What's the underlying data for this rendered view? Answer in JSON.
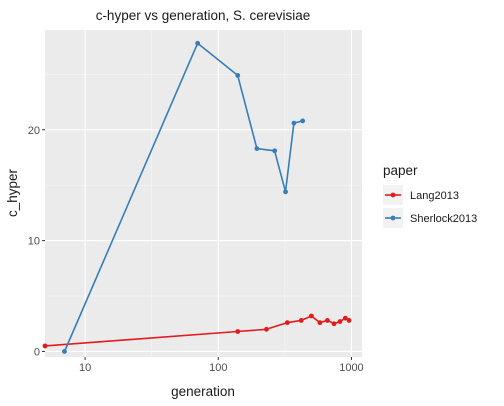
{
  "chart_data": {
    "type": "line",
    "title": "c-hyper vs generation, S. cerevisiae",
    "xlabel": "generation",
    "ylabel": "c_hyper",
    "x_scale": "log10",
    "xlim": [
      5,
      1200
    ],
    "ylim": [
      -0.5,
      29
    ],
    "x_ticks": [
      10,
      100,
      1000
    ],
    "x_tick_labels": [
      "10",
      "100",
      "1000"
    ],
    "y_ticks": [
      0,
      10,
      20
    ],
    "y_tick_labels": [
      "0",
      "10",
      "20"
    ],
    "grid": true,
    "legend": {
      "title": "paper",
      "position": "right"
    },
    "series": [
      {
        "name": "Lang2013",
        "color": "#e41a1c",
        "x": [
          5,
          140,
          230,
          330,
          420,
          500,
          580,
          660,
          740,
          820,
          900,
          960
        ],
        "y": [
          0.5,
          1.8,
          2.0,
          2.6,
          2.8,
          3.2,
          2.6,
          2.8,
          2.5,
          2.7,
          3.0,
          2.8
        ]
      },
      {
        "name": "Sherlock2013",
        "color": "#377eb8",
        "x": [
          7,
          70,
          140,
          195,
          265,
          320,
          370,
          430
        ],
        "y": [
          0,
          27.8,
          24.9,
          18.3,
          18.1,
          14.4,
          20.6,
          20.8
        ]
      }
    ]
  }
}
